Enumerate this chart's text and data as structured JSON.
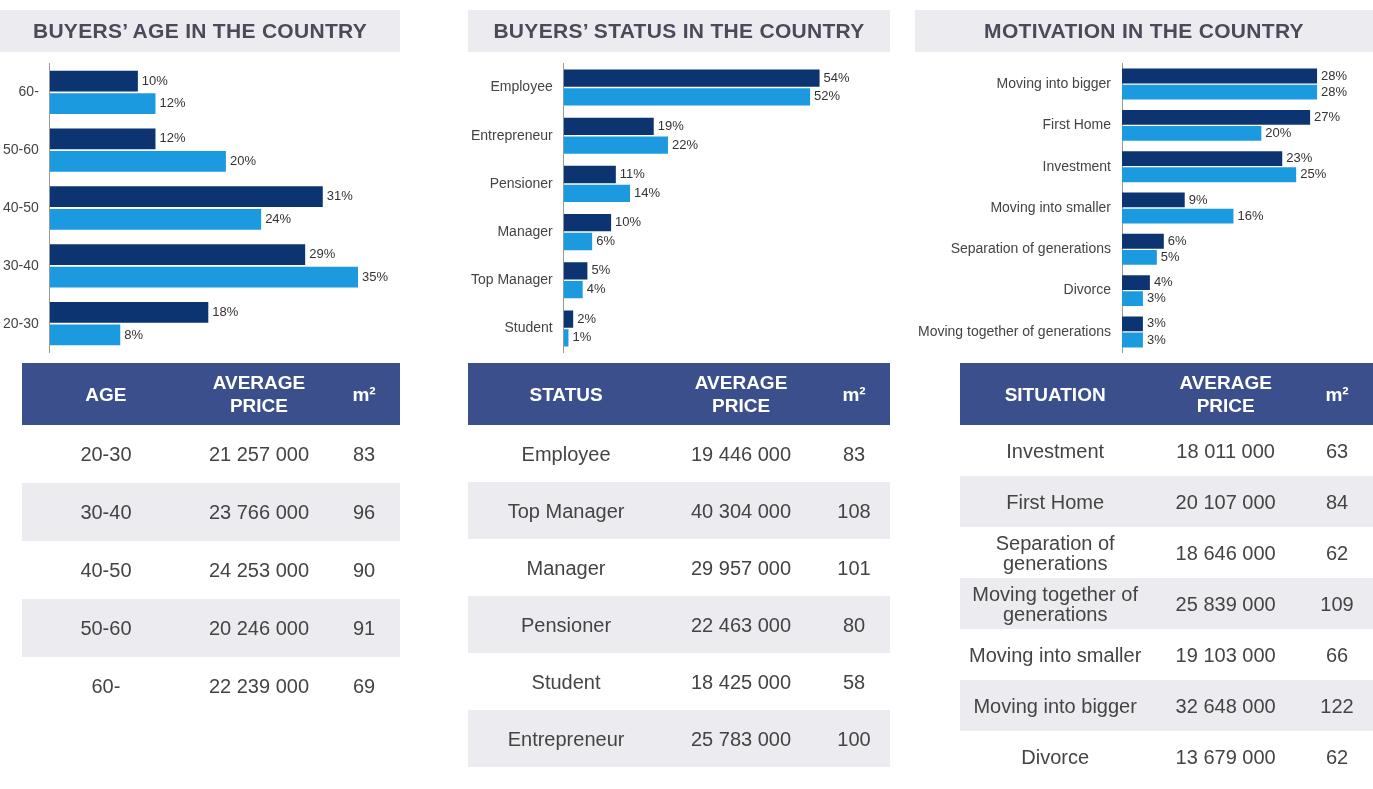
{
  "chart_data": [
    {
      "type": "bar",
      "orientation": "horizontal",
      "title": "BUYERS’ AGE IN THE COUNTRY",
      "categories": [
        "60-",
        "50-60",
        "40-50",
        "30-40",
        "20-30"
      ],
      "series": [
        {
          "color": "#0b3470",
          "values": [
            10,
            12,
            31,
            29,
            18
          ],
          "value_labels": [
            "10%",
            "12%",
            "31%",
            "29%",
            "18%"
          ]
        },
        {
          "color": "#1b9ae0",
          "values": [
            12,
            20,
            24,
            35,
            8
          ],
          "value_labels": [
            "12%",
            "20%",
            "24%",
            "35%",
            "8%"
          ]
        }
      ]
    },
    {
      "type": "bar",
      "orientation": "horizontal",
      "title": "BUYERS’ STATUS IN THE COUNTRY",
      "categories": [
        "Employee",
        "Entrepreneur",
        "Pensioner",
        "Manager",
        "Top Manager",
        "Student"
      ],
      "series": [
        {
          "color": "#0b3470",
          "values": [
            54,
            19,
            11,
            10,
            5,
            2
          ],
          "value_labels": [
            "54%",
            "19%",
            "11%",
            "10%",
            "5%",
            "2%"
          ]
        },
        {
          "color": "#1b9ae0",
          "values": [
            52,
            22,
            14,
            6,
            4,
            1
          ],
          "value_labels": [
            "52%",
            "22%",
            "14%",
            "6%",
            "4%",
            "1%"
          ]
        }
      ]
    },
    {
      "type": "bar",
      "orientation": "horizontal",
      "title": "MOTIVATION IN THE COUNTRY",
      "categories": [
        "Moving into bigger",
        "First Home",
        "Investment",
        "Moving into smaller",
        "Separation of generations",
        "Divorce",
        "Moving together of generations"
      ],
      "series": [
        {
          "color": "#0b3470",
          "values": [
            28,
            27,
            23,
            9,
            6,
            4,
            3
          ],
          "value_labels": [
            "28%",
            "27%",
            "23%",
            "9%",
            "6%",
            "4%",
            "3%"
          ]
        },
        {
          "color": "#1b9ae0",
          "values": [
            28,
            20,
            25,
            16,
            5,
            3,
            3
          ],
          "value_labels": [
            "28%",
            "20%",
            "25%",
            "16%",
            "5%",
            "3%",
            "3%"
          ]
        }
      ]
    },
    {
      "type": "other",
      "data_labels": true,
      "xlabel": "AGE",
      "annotations": [
        "AVERAGE PRICE",
        "m²"
      ],
      "categories": [
        "20-30",
        "30-40",
        "40-50",
        "50-60",
        "60-"
      ],
      "series": [
        {
          "values": [
            21257000,
            23766000,
            24253000,
            20246000,
            22239000
          ]
        },
        {
          "values": [
            83,
            96,
            90,
            91,
            69
          ]
        }
      ]
    },
    {
      "type": "other",
      "data_labels": true,
      "xlabel": "STATUS",
      "annotations": [
        "AVERAGE PRICE",
        "m²"
      ],
      "categories": [
        "Employee",
        "Top Manager",
        "Manager",
        "Pensioner",
        "Student",
        "Entrepreneur"
      ],
      "series": [
        {
          "values": [
            19446000,
            40304000,
            29957000,
            22463000,
            18425000,
            25783000
          ]
        },
        {
          "values": [
            83,
            108,
            101,
            80,
            58,
            100
          ]
        }
      ]
    },
    {
      "type": "other",
      "data_labels": true,
      "xlabel": "SITUATION",
      "annotations": [
        "AVERAGE PRICE",
        "m²"
      ],
      "categories": [
        "Investment",
        "First Home",
        "Separation of generations",
        "Moving together of generations",
        "Moving into smaller",
        "Moving into bigger",
        "Divorce"
      ],
      "series": [
        {
          "values": [
            18011000,
            20107000,
            18646000,
            25839000,
            19103000,
            32648000,
            13679000
          ]
        },
        {
          "values": [
            63,
            84,
            62,
            109,
            66,
            122,
            62
          ]
        }
      ]
    }
  ]
}
